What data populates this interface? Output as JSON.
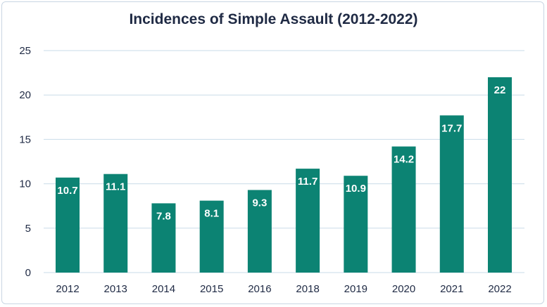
{
  "chart_data": {
    "type": "bar",
    "title": "Incidences of Simple Assault (2012-2022)",
    "xlabel": "",
    "ylabel": "",
    "categories": [
      "2012",
      "2013",
      "2014",
      "2015",
      "2016",
      "2018",
      "2019",
      "2020",
      "2021",
      "2022"
    ],
    "values": [
      10.7,
      11.1,
      7.8,
      8.1,
      9.3,
      11.7,
      10.9,
      14.2,
      17.7,
      22
    ],
    "data_labels": [
      "10.7",
      "11.1",
      "7.8",
      "8.1",
      "9.3",
      "11.7",
      "10.9",
      "14.2",
      "17.7",
      "22"
    ],
    "ylim": [
      0,
      25
    ],
    "yticks": [
      "0",
      "5",
      "10",
      "15",
      "20",
      "25"
    ],
    "grid": true,
    "legend": "none",
    "colors": {
      "bar": "#0c8373",
      "grid": "#c9dbe8",
      "text": "#1f2a44",
      "label": "#ffffff"
    }
  }
}
